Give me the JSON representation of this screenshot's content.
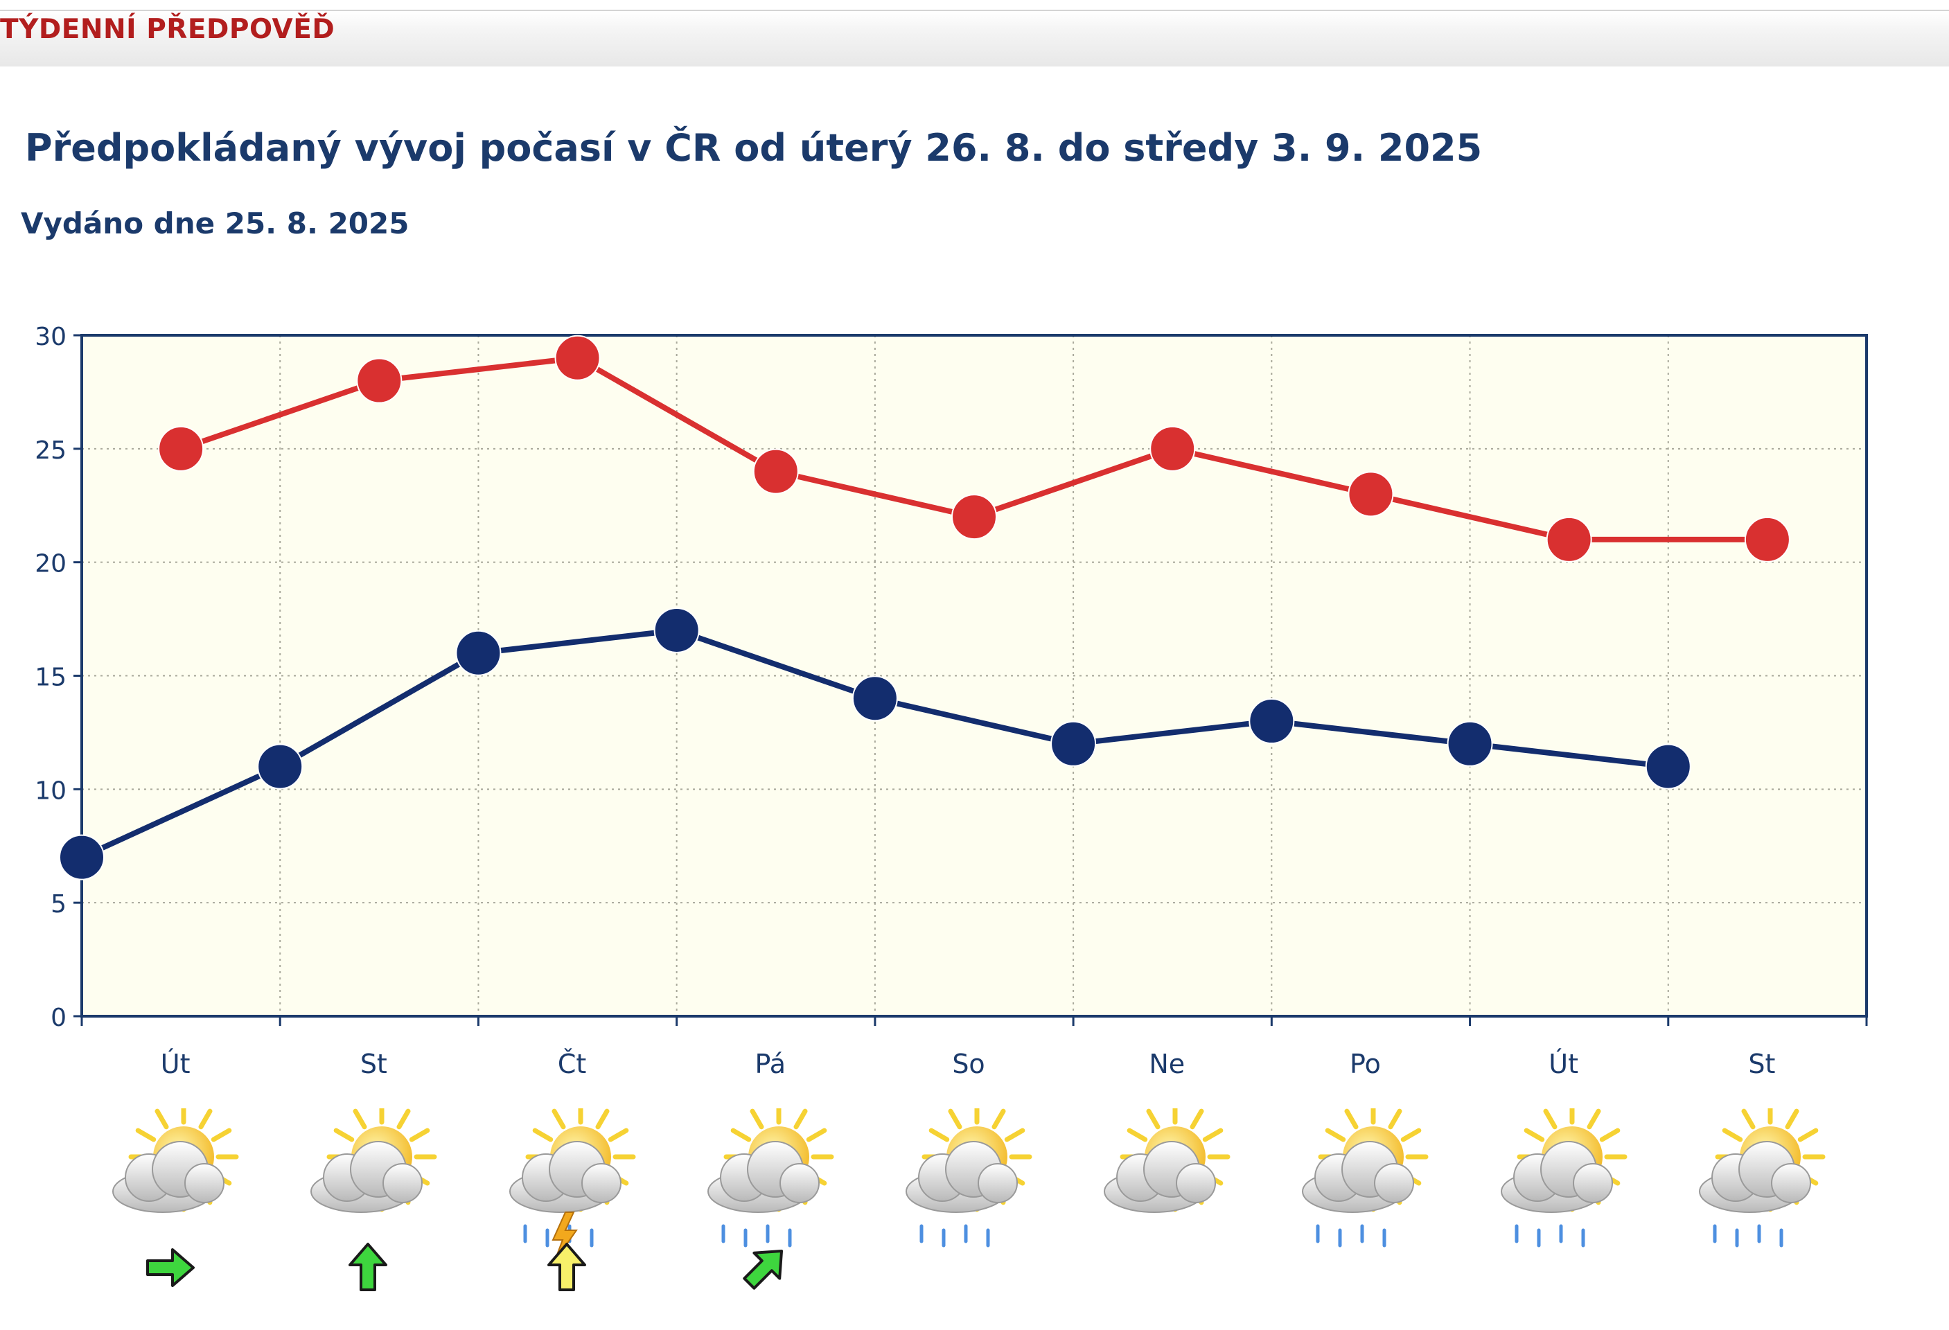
{
  "header": {
    "section_title": "TÝDENNÍ PŘEDPOVĚĎ"
  },
  "forecast": {
    "heading": "Předpokládaný vývoj počasí v ČR od úterý 26. 8. do středy 3. 9. 2025",
    "issued": "Vydáno dne 25. 8. 2025"
  },
  "chart_data": {
    "type": "line",
    "categories": [
      "Út",
      "St",
      "Čt",
      "Pá",
      "So",
      "Ne",
      "Po",
      "Út",
      "St"
    ],
    "ylim": [
      0,
      30
    ],
    "yticks": [
      0,
      5,
      10,
      15,
      20,
      25,
      30
    ],
    "grid": true,
    "series": [
      {
        "color": "#d93030",
        "x": [
          0.5,
          1.5,
          2.5,
          3.5,
          4.5,
          5.5,
          6.5,
          7.5,
          8.5
        ],
        "values": [
          25,
          28,
          29,
          24,
          22,
          25,
          23,
          21,
          21
        ]
      },
      {
        "color": "#132d6e",
        "x": [
          0,
          1,
          2,
          3,
          4,
          5,
          6,
          7,
          8
        ],
        "values": [
          7,
          11,
          16,
          17,
          14,
          12,
          13,
          12,
          11
        ]
      }
    ],
    "colors": {
      "plot_bg": "#fefef0",
      "axis": "#1b3a6b",
      "grid": "#a8a89a",
      "label": "#1b3a6b"
    }
  },
  "weather": [
    {
      "day": "Út",
      "icon": "sun-behind-cloud-icon",
      "rain": false,
      "storm": false,
      "wind": "east",
      "wind_color": "#3ed63e"
    },
    {
      "day": "St",
      "icon": "cloud-sun-icon",
      "rain": false,
      "storm": false,
      "wind": "north",
      "wind_color": "#3ed63e"
    },
    {
      "day": "Čt",
      "icon": "thunderstorm-icon",
      "rain": true,
      "storm": true,
      "wind": "north",
      "wind_color": "#f7f06a"
    },
    {
      "day": "Pá",
      "icon": "cloud-sun-rain-icon",
      "rain": true,
      "storm": false,
      "wind": "northeast",
      "wind_color": "#3ed63e"
    },
    {
      "day": "So",
      "icon": "cloud-sun-rain-icon",
      "rain": true,
      "storm": false,
      "wind": null
    },
    {
      "day": "Ne",
      "icon": "sun-behind-cloud-icon",
      "rain": false,
      "storm": false,
      "wind": null
    },
    {
      "day": "Po",
      "icon": "cloud-sun-rain-icon",
      "rain": true,
      "storm": false,
      "wind": null
    },
    {
      "day": "Út",
      "icon": "cloud-sun-rain-icon",
      "rain": true,
      "storm": false,
      "wind": null
    },
    {
      "day": "St",
      "icon": "cloud-sun-rain-icon",
      "rain": true,
      "storm": false,
      "wind": null
    }
  ]
}
